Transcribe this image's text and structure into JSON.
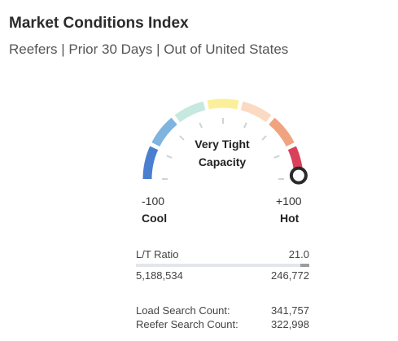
{
  "header": {
    "title": "Market Conditions Index",
    "subtitle": "Reefers | Prior 30 Days | Out of United States"
  },
  "gauge": {
    "center_line1": "Very Tight",
    "center_line2": "Capacity",
    "min_value": "-100",
    "max_value": "+100",
    "min_label": "Cool",
    "max_label": "Hot",
    "index_value": 97,
    "segment_colors": [
      "#4a7fd0",
      "#7fb4de",
      "#c6e8de",
      "#fbef9a",
      "#fbd9c2",
      "#f1a27f",
      "#d9415a"
    ],
    "needle_color": "#2b2b2b"
  },
  "stats": {
    "lt_ratio": {
      "label": "L/T Ratio",
      "value": "21.0",
      "fill_fraction": 0.05
    },
    "left_count": "5,188,534",
    "right_count": "246,772",
    "load_search": {
      "label": "Load Search Count:",
      "value": "341,757"
    },
    "reefer_search": {
      "label": "Reefer Search Count:",
      "value": "322,998"
    }
  }
}
